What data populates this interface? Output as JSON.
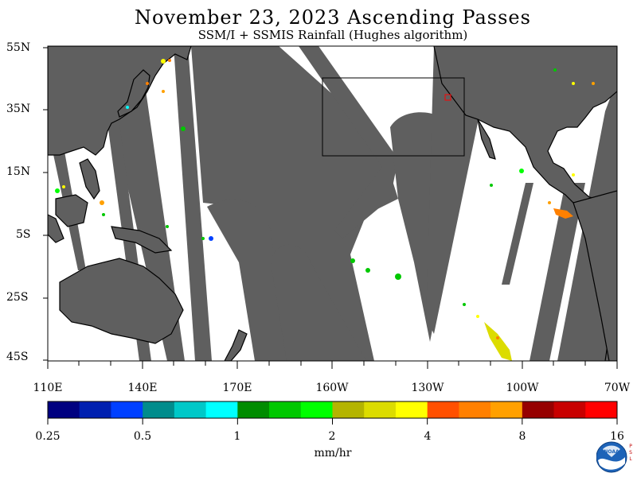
{
  "title": "November 23, 2023  Ascending Passes",
  "subtitle": "SSM/I + SSMIS Rainfall (Hughes algorithm)",
  "lat_labels": [
    "55N",
    "35N",
    "15N",
    "5S",
    "25S",
    "45S"
  ],
  "lon_labels": [
    "110E",
    "140E",
    "170E",
    "160W",
    "130W",
    "100W",
    "70W"
  ],
  "colorbar": {
    "colors": [
      "#000080",
      "#0020b0",
      "#0040ff",
      "#008c8c",
      "#00c8c8",
      "#00ffff",
      "#008c00",
      "#00c800",
      "#00ff00",
      "#b4b400",
      "#dcdc00",
      "#ffff00",
      "#ff5000",
      "#ff8000",
      "#ffa000",
      "#960000",
      "#c80000",
      "#ff0000"
    ],
    "tick_labels": [
      "0.25",
      "0.5",
      "1",
      "2",
      "4",
      "8",
      "16"
    ],
    "units": "mm/hr"
  },
  "legend_colors": {
    "land": "#000000",
    "ocean": "#ffffff",
    "no_data": "#5f5f5f"
  },
  "logo": {
    "name": "NOAA",
    "side_text": "PSL"
  }
}
